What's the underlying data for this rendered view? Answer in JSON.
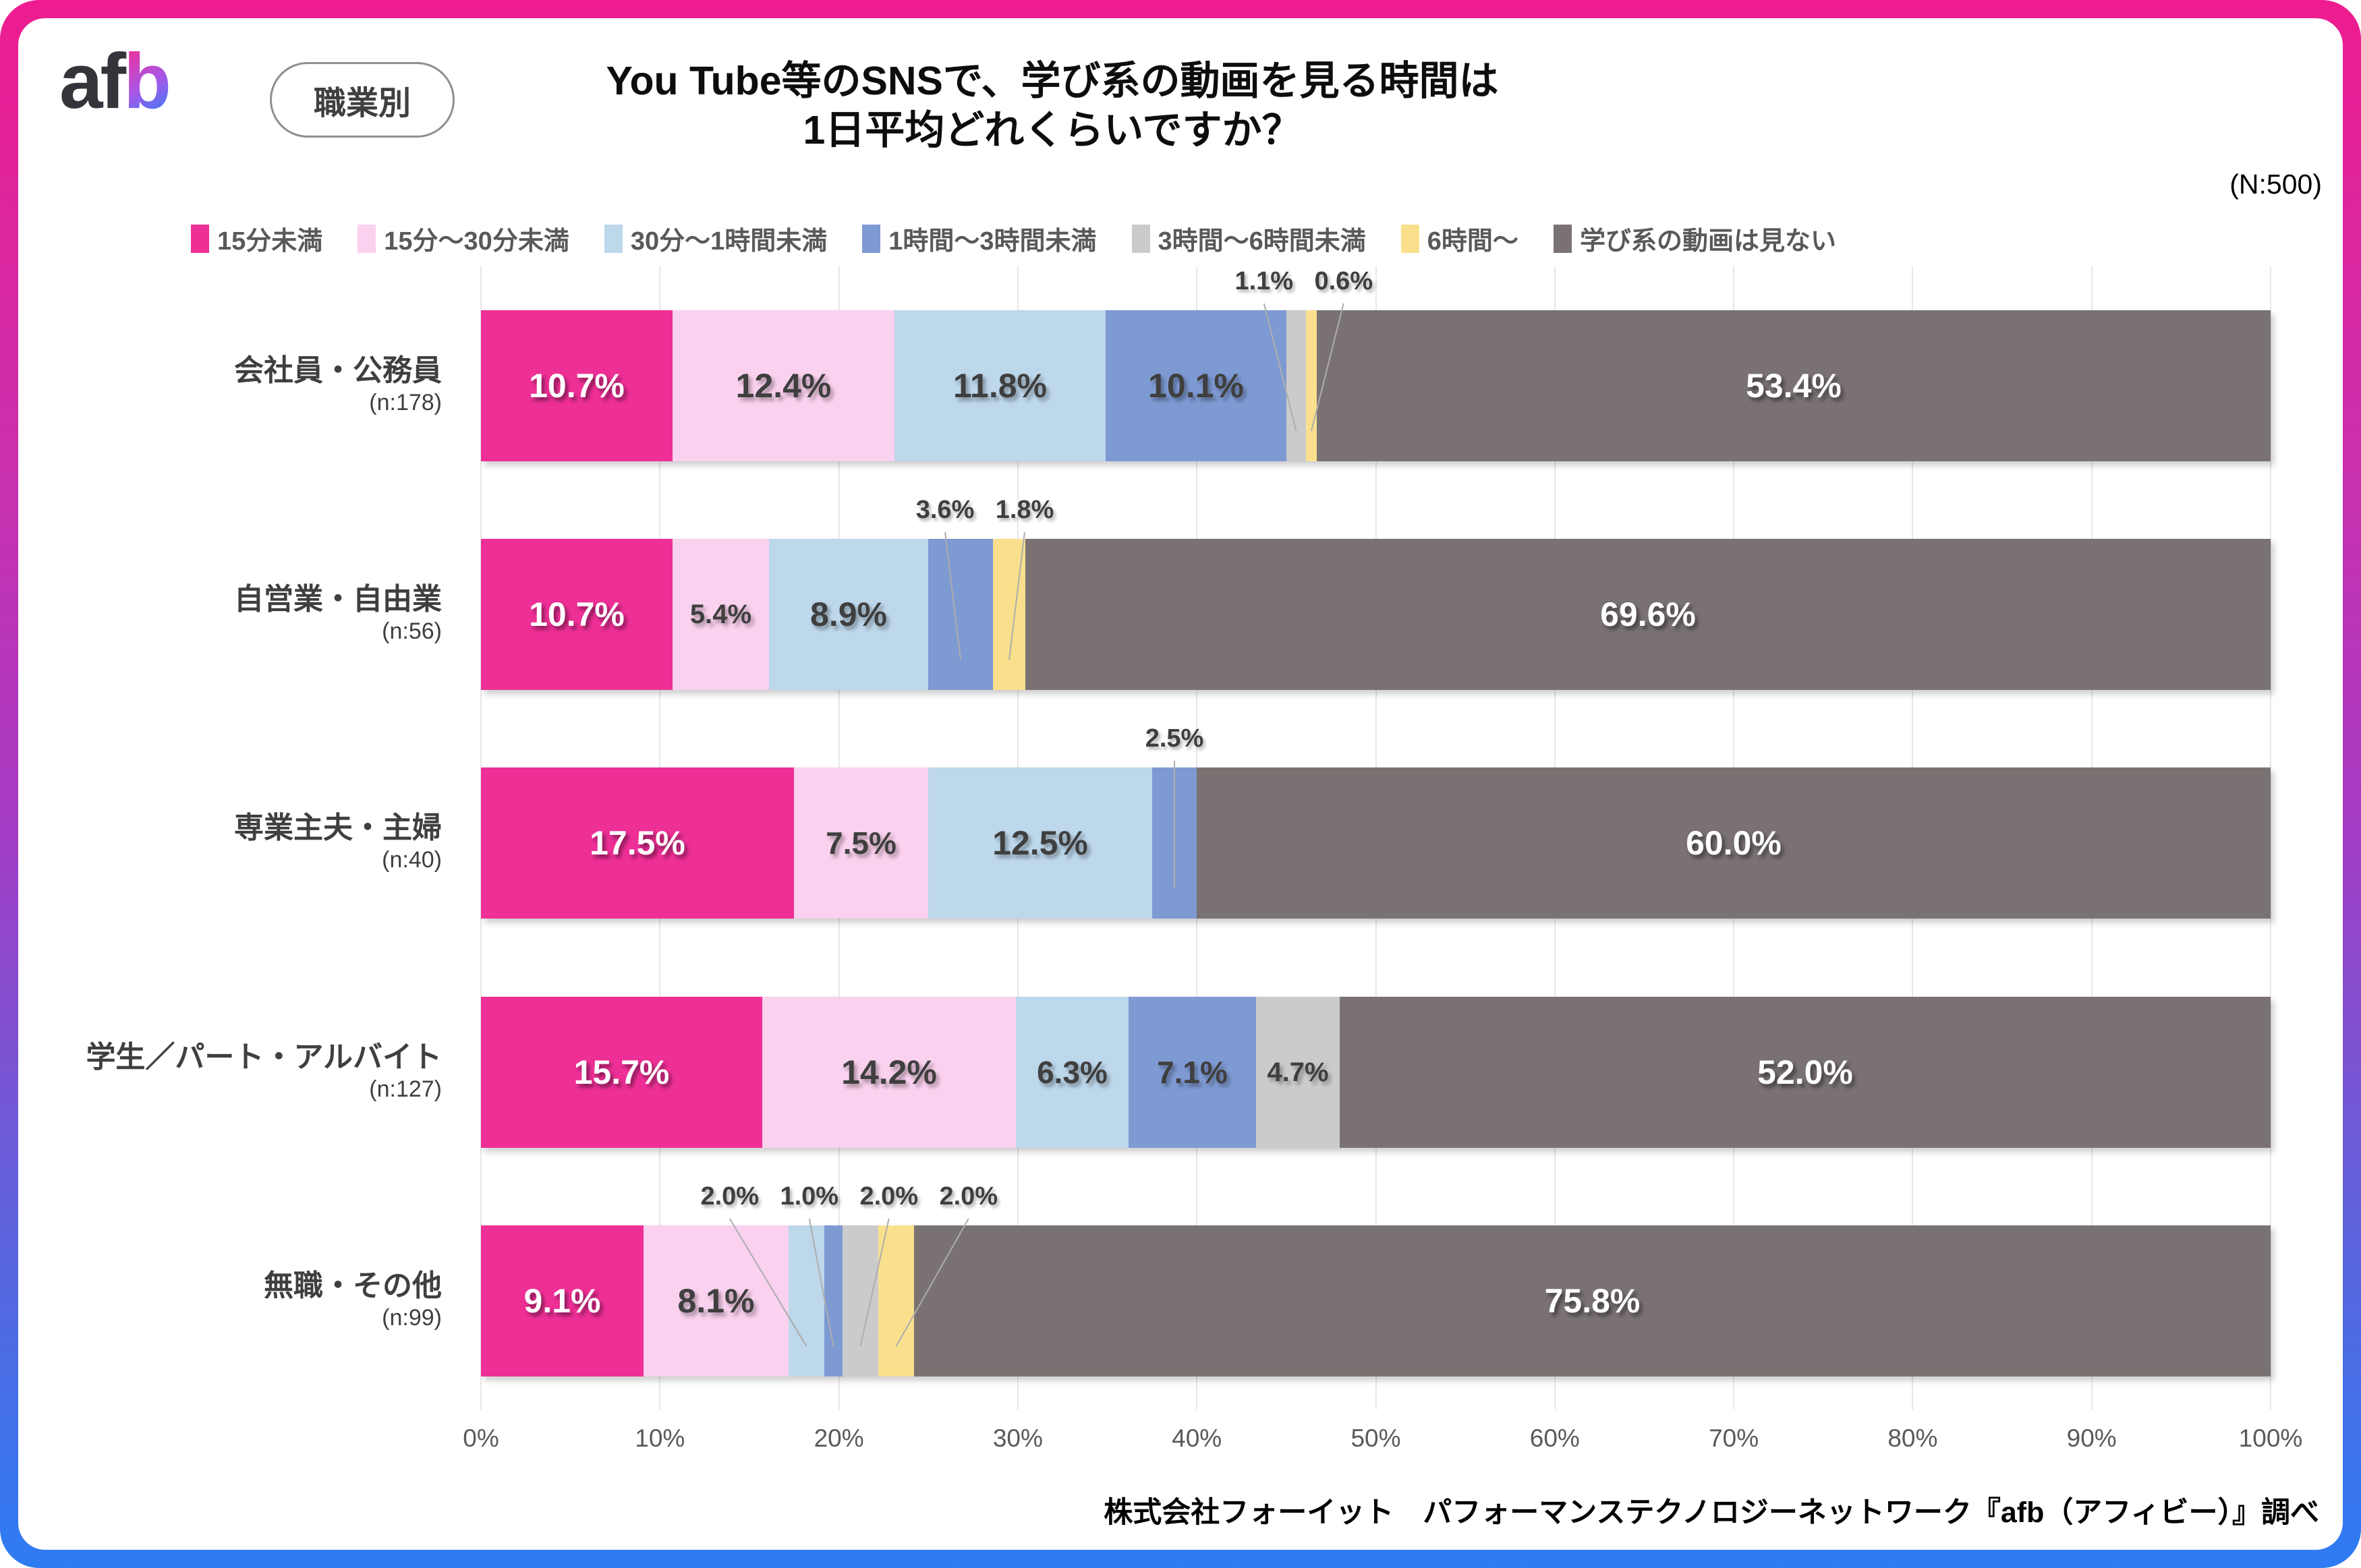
{
  "frame": {
    "border_gradient_top": "#EE1C8F",
    "border_gradient_mid": "#A63BC4",
    "border_gradient_bottom": "#2E7CF3"
  },
  "header": {
    "logo_af": "af",
    "logo_b": "b",
    "badge_label": "職業別",
    "title_line1": "You Tube等のSNSで、学び系の動画を見る時間は",
    "title_line2": "1日平均どれくらいですか？",
    "sample_size": "(N:500)"
  },
  "chart_data": {
    "type": "bar",
    "variant": "horizontal-stacked-100pct",
    "unit": "%",
    "legend_position": "top",
    "legend": [
      {
        "label": "15分未満",
        "color": "#EE2F96"
      },
      {
        "label": "15分〜30分未満",
        "color": "#FAD1EE"
      },
      {
        "label": "30分〜1時間未満",
        "color": "#BDD7EB"
      },
      {
        "label": "1時間〜3時間未満",
        "color": "#7E9AD3"
      },
      {
        "label": "3時間〜6時間未満",
        "color": "#CCCBCB"
      },
      {
        "label": "6時間〜",
        "color": "#FAE08D"
      },
      {
        "label": "学び系の動画は見ない",
        "color": "#7A7272"
      }
    ],
    "rows": [
      {
        "label": "会社員・公務員",
        "n_label": "(n:178)",
        "values": [
          10.7,
          12.4,
          11.8,
          10.1,
          1.1,
          0.6,
          53.4
        ]
      },
      {
        "label": "自営業・自由業",
        "n_label": "(n:56)",
        "values": [
          10.7,
          5.4,
          8.9,
          3.6,
          0,
          1.8,
          69.6
        ]
      },
      {
        "label": "専業主夫・主婦",
        "n_label": "(n:40)",
        "values": [
          17.5,
          7.5,
          12.5,
          2.5,
          0,
          0,
          60.0
        ]
      },
      {
        "label": "学生／パート・アルバイト",
        "n_label": "(n:127)",
        "values": [
          15.7,
          14.2,
          6.3,
          7.1,
          4.7,
          0,
          52.0
        ]
      },
      {
        "label": "無職・その他",
        "n_label": "(n:99)",
        "values": [
          9.1,
          8.1,
          2.0,
          1.0,
          2.0,
          2.0,
          75.8
        ]
      }
    ],
    "x_axis": {
      "range": [
        0,
        100
      ],
      "tick_labels": [
        "0%",
        "10%",
        "20%",
        "30%",
        "40%",
        "50%",
        "60%",
        "70%",
        "80%",
        "90%",
        "100%"
      ],
      "grid": true
    },
    "colors": {
      "dark_label": "#3F3F3F",
      "light_label": "#FFFFFF",
      "axis_text": "#595959",
      "gridline": "#E7E7E7"
    }
  },
  "footer": {
    "source": "株式会社フォーイット　パフォーマンステクノロジーネットワーク『afb（アフィビー）』調べ"
  }
}
